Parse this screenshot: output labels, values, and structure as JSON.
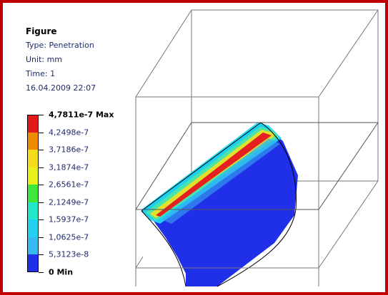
{
  "figure": {
    "title": "Figure",
    "type": "Type: Penetration",
    "unit": "Unit: mm",
    "time": "Time: 1",
    "date": "16.04.2009 22:07"
  },
  "legend": {
    "max_label": "4,7811e-7 Max",
    "min_label": "0 Min",
    "values": [
      "4,2498e-7",
      "3,7186e-7",
      "3,1874e-7",
      "2,6561e-7",
      "2,1249e-7",
      "1,5937e-7",
      "1,0625e-7",
      "5,3123e-8"
    ],
    "colors": [
      "#e41a1a",
      "#f08a00",
      "#f3dd1a",
      "#e8f01a",
      "#3ce83c",
      "#20e8c8",
      "#22d0f0",
      "#38b8f0",
      "#2030e8"
    ]
  }
}
